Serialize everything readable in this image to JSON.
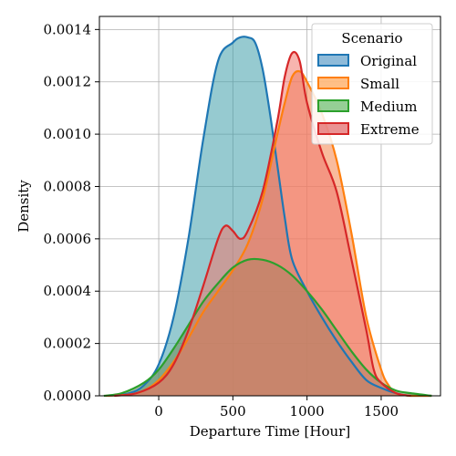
{
  "chart_data": {
    "type": "area",
    "xlabel": "Departure Time [Hour]",
    "ylabel": "Density",
    "xlim": [
      -400,
      1900
    ],
    "ylim": [
      0,
      0.00145
    ],
    "xticks": [
      0,
      500,
      1000,
      1500
    ],
    "xtick_labels": [
      "0",
      "500",
      "1000",
      "1500"
    ],
    "yticks": [
      0,
      0.0002,
      0.0004,
      0.0006,
      0.0008,
      0.001,
      0.0012,
      0.0014
    ],
    "ytick_labels": [
      "0.0000",
      "0.0002",
      "0.0004",
      "0.0006",
      "0.0008",
      "0.0010",
      "0.0012",
      "0.0014"
    ],
    "grid": true,
    "legend": {
      "title": "Scenario",
      "placement": "top-right",
      "entries": [
        "Original",
        "Small",
        "Medium",
        "Extreme"
      ]
    },
    "series": [
      {
        "name": "Original",
        "color": "#1f77b4",
        "fill": "#3f9eaa",
        "x": [
          -340,
          -200,
          -100,
          0,
          100,
          200,
          300,
          400,
          500,
          550,
          600,
          650,
          700,
          750,
          800,
          850,
          900,
          1000,
          1100,
          1200,
          1300,
          1400,
          1500,
          1600,
          1700,
          1840
        ],
        "y": [
          0,
          1e-05,
          4e-05,
          0.00012,
          0.0003,
          0.0006,
          0.00098,
          0.00128,
          0.00135,
          0.00137,
          0.00137,
          0.00135,
          0.00125,
          0.00108,
          0.00088,
          0.00068,
          0.00052,
          0.0004,
          0.0003,
          0.00021,
          0.00013,
          6e-05,
          3e-05,
          1e-05,
          0,
          0
        ]
      },
      {
        "name": "Small",
        "color": "#ff7f0e",
        "fill": "#f4834a",
        "x": [
          -360,
          -200,
          -100,
          0,
          100,
          200,
          300,
          400,
          500,
          600,
          700,
          800,
          850,
          900,
          950,
          1000,
          1100,
          1200,
          1300,
          1400,
          1500,
          1550,
          1600,
          1700,
          1840
        ],
        "y": [
          0,
          5e-06,
          2e-05,
          6e-05,
          0.00013,
          0.00022,
          0.00032,
          0.0004,
          0.00048,
          0.00058,
          0.00075,
          0.001,
          0.00112,
          0.00122,
          0.00124,
          0.0012,
          0.00108,
          0.0009,
          0.00062,
          0.0003,
          0.0001,
          4e-05,
          1e-05,
          0,
          0
        ]
      },
      {
        "name": "Medium",
        "color": "#2ca02c",
        "fill": "#6e8a52",
        "x": [
          -370,
          -250,
          -100,
          0,
          100,
          200,
          300,
          400,
          500,
          600,
          700,
          800,
          900,
          1000,
          1100,
          1200,
          1300,
          1400,
          1500,
          1600,
          1700,
          1840
        ],
        "y": [
          0,
          1e-05,
          5e-05,
          0.0001,
          0.00018,
          0.00027,
          0.00036,
          0.00043,
          0.00049,
          0.00052,
          0.00052,
          0.0005,
          0.00046,
          0.0004,
          0.00033,
          0.00025,
          0.00017,
          0.0001,
          5e-05,
          2e-05,
          1e-05,
          0
        ]
      },
      {
        "name": "Extreme",
        "color": "#d62728",
        "fill": "#f0786e",
        "x": [
          -300,
          -150,
          0,
          100,
          200,
          300,
          400,
          450,
          500,
          550,
          600,
          700,
          800,
          850,
          900,
          950,
          1000,
          1100,
          1200,
          1300,
          1400,
          1450,
          1500,
          1600,
          1700
        ],
        "y": [
          0,
          1e-05,
          5e-05,
          0.00012,
          0.00025,
          0.00042,
          0.0006,
          0.00065,
          0.00063,
          0.0006,
          0.00063,
          0.00078,
          0.00105,
          0.00122,
          0.00131,
          0.00128,
          0.00112,
          0.00093,
          0.00078,
          0.00052,
          0.00025,
          0.0001,
          5e-05,
          1e-05,
          0
        ]
      }
    ]
  }
}
